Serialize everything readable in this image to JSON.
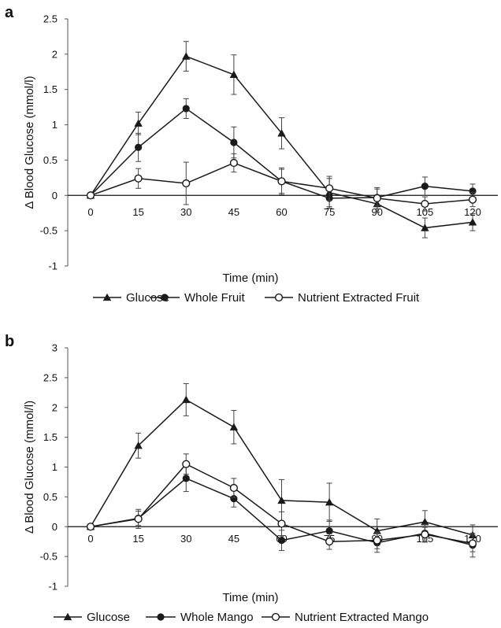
{
  "chart_data": [
    {
      "panel_label": "a",
      "type": "line",
      "xlabel": "Time (min)",
      "ylabel": "Δ Blood Glucose (mmol/l)",
      "x": [
        0,
        15,
        30,
        45,
        60,
        75,
        90,
        105,
        120
      ],
      "x_ticks": [
        "0",
        "15",
        "30",
        "45",
        "60",
        "75",
        "90",
        "105",
        "120"
      ],
      "ylim": [
        -1,
        2.5
      ],
      "y_ticks": [
        "-1",
        "-0.5",
        "0",
        "0.5",
        "1",
        "1.5",
        "2",
        "2.5"
      ],
      "y_tick_values": [
        -1,
        -0.5,
        0,
        0.5,
        1,
        1.5,
        2,
        2.5
      ],
      "grid": false,
      "legend_position": "bottom",
      "series": [
        {
          "name": "Glucose",
          "marker": "triangle",
          "values": [
            0,
            1.02,
            1.97,
            1.71,
            0.88,
            0.04,
            -0.12,
            -0.46,
            -0.38
          ],
          "errors": [
            0,
            0.16,
            0.21,
            0.28,
            0.22,
            0.2,
            0.12,
            0.14,
            0.12
          ]
        },
        {
          "name": "Whole Fruit",
          "marker": "filled-circle",
          "values": [
            0,
            0.68,
            1.23,
            0.75,
            0.2,
            -0.04,
            -0.03,
            0.13,
            0.06
          ],
          "errors": [
            0,
            0.2,
            0.14,
            0.22,
            0.17,
            0.14,
            0.12,
            0.13,
            0.1
          ]
        },
        {
          "name": "Nutrient Extracted Fruit",
          "marker": "open-circle",
          "values": [
            0,
            0.24,
            0.17,
            0.46,
            0.2,
            0.1,
            -0.04,
            -0.12,
            -0.06
          ],
          "errors": [
            0,
            0.14,
            0.3,
            0.13,
            0.19,
            0.17,
            0.15,
            0.1,
            0.1
          ]
        }
      ]
    },
    {
      "panel_label": "b",
      "type": "line",
      "xlabel": "Time (min)",
      "ylabel": "Δ Blood Glucose (mmol/l)",
      "x": [
        0,
        15,
        30,
        45,
        60,
        75,
        90,
        105,
        120
      ],
      "x_ticks": [
        "0",
        "15",
        "30",
        "45",
        "60",
        "75",
        "90",
        "105",
        "120"
      ],
      "ylim": [
        -1,
        3
      ],
      "y_ticks": [
        "-1",
        "-0.5",
        "0",
        "0.5",
        "1",
        "1.5",
        "2",
        "2.5",
        "3"
      ],
      "y_tick_values": [
        -1,
        -0.5,
        0,
        0.5,
        1,
        1.5,
        2,
        2.5,
        3
      ],
      "grid": false,
      "legend_position": "bottom",
      "series": [
        {
          "name": "Glucose",
          "marker": "triangle",
          "values": [
            0,
            1.36,
            2.13,
            1.67,
            0.44,
            0.41,
            -0.07,
            0.08,
            -0.14
          ],
          "errors": [
            0,
            0.21,
            0.27,
            0.28,
            0.35,
            0.32,
            0.2,
            0.19,
            0.17
          ]
        },
        {
          "name": "Whole Mango",
          "marker": "filled-circle",
          "values": [
            0,
            0.14,
            0.81,
            0.47,
            -0.23,
            -0.07,
            -0.27,
            -0.11,
            -0.31
          ],
          "errors": [
            0,
            0.12,
            0.22,
            0.14,
            0.17,
            0.18,
            0.16,
            0.15,
            0.2
          ]
        },
        {
          "name": "Nutrient Extracted Mango",
          "marker": "open-circle",
          "values": [
            0,
            0.13,
            1.05,
            0.65,
            0.05,
            -0.25,
            -0.23,
            -0.13,
            -0.28
          ],
          "errors": [
            0,
            0.16,
            0.17,
            0.16,
            0.2,
            0.13,
            0.14,
            0.12,
            0.14
          ]
        }
      ]
    }
  ]
}
